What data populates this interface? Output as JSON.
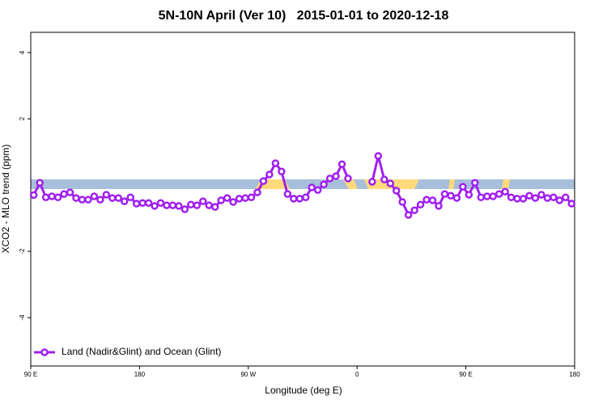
{
  "chart_data": {
    "type": "line",
    "title": "5N-10N April (Ver 10)   2015-01-01 to 2020-12-18",
    "xlabel": "Longitude (deg E)",
    "ylabel": "XCO2 - MLO trend (ppm)",
    "xlim": [
      90,
      540
    ],
    "ylim": [
      -5.46,
      4.61
    ],
    "xticks": [
      {
        "value": 90,
        "label": "90 E"
      },
      180,
      {
        "value": 270,
        "label": "90 W"
      },
      {
        "value": 360,
        "label": "0"
      },
      {
        "value": 450,
        "label": "90 E"
      },
      {
        "value": 540,
        "label": "180"
      }
    ],
    "yticks": [
      -4,
      -2,
      2,
      4
    ],
    "legend_position": "bottom-left",
    "x": [
      92.5,
      97.5,
      102.5,
      107.5,
      112.5,
      117.5,
      122.5,
      127.5,
      132.5,
      137.5,
      142.5,
      147.5,
      152.5,
      157.5,
      162.5,
      167.5,
      172.5,
      177.5,
      182.5,
      187.5,
      192.5,
      197.5,
      202.5,
      207.5,
      212.5,
      217.5,
      222.5,
      227.5,
      232.5,
      237.5,
      242.5,
      247.5,
      252.5,
      257.5,
      262.5,
      267.5,
      272.5,
      277.5,
      282.5,
      287.5,
      292.5,
      297.5,
      302.5,
      307.5,
      312.5,
      317.5,
      322.5,
      327.5,
      332.5,
      337.5,
      342.5,
      347.5,
      352.5,
      357.5,
      362.5,
      367.5,
      372.5,
      377.5,
      382.5,
      387.5,
      392.5,
      397.5,
      402.5,
      407.5,
      412.5,
      417.5,
      422.5,
      427.5,
      432.5,
      437.5,
      442.5,
      447.5,
      452.5,
      457.5,
      462.5,
      467.5,
      472.5,
      477.5,
      482.5,
      487.5,
      492.5,
      497.5,
      502.5,
      507.5,
      512.5,
      517.5,
      522.5,
      527.5,
      532.5,
      537.5
    ],
    "series": [
      {
        "name": "Land (Nadir&Glint) and Ocean (Glint)",
        "color": "#a020f0",
        "values": [
          -0.3,
          0.07,
          -0.37,
          -0.34,
          -0.37,
          -0.27,
          -0.22,
          -0.39,
          -0.44,
          -0.44,
          -0.34,
          -0.44,
          -0.29,
          -0.39,
          -0.39,
          -0.49,
          -0.37,
          -0.56,
          -0.54,
          -0.54,
          -0.63,
          -0.54,
          -0.61,
          -0.61,
          -0.63,
          -0.73,
          -0.59,
          -0.61,
          -0.49,
          -0.61,
          -0.66,
          -0.46,
          -0.39,
          -0.51,
          -0.41,
          -0.39,
          -0.37,
          -0.22,
          0.12,
          0.32,
          0.66,
          0.41,
          -0.27,
          -0.41,
          -0.41,
          -0.37,
          -0.07,
          -0.15,
          0.02,
          0.2,
          0.27,
          0.63,
          0.2,
          null,
          null,
          null,
          0.1,
          0.88,
          0.17,
          0.05,
          -0.17,
          -0.51,
          -0.9,
          -0.76,
          -0.59,
          -0.44,
          -0.46,
          -0.63,
          -0.27,
          -0.32,
          -0.39,
          -0.05,
          -0.29,
          0.07,
          -0.37,
          -0.34,
          -0.34,
          -0.27,
          -0.2,
          -0.37,
          -0.41,
          -0.41,
          -0.32,
          -0.39,
          -0.29,
          -0.39,
          -0.37,
          -0.46,
          -0.37,
          -0.56
        ]
      }
    ]
  }
}
